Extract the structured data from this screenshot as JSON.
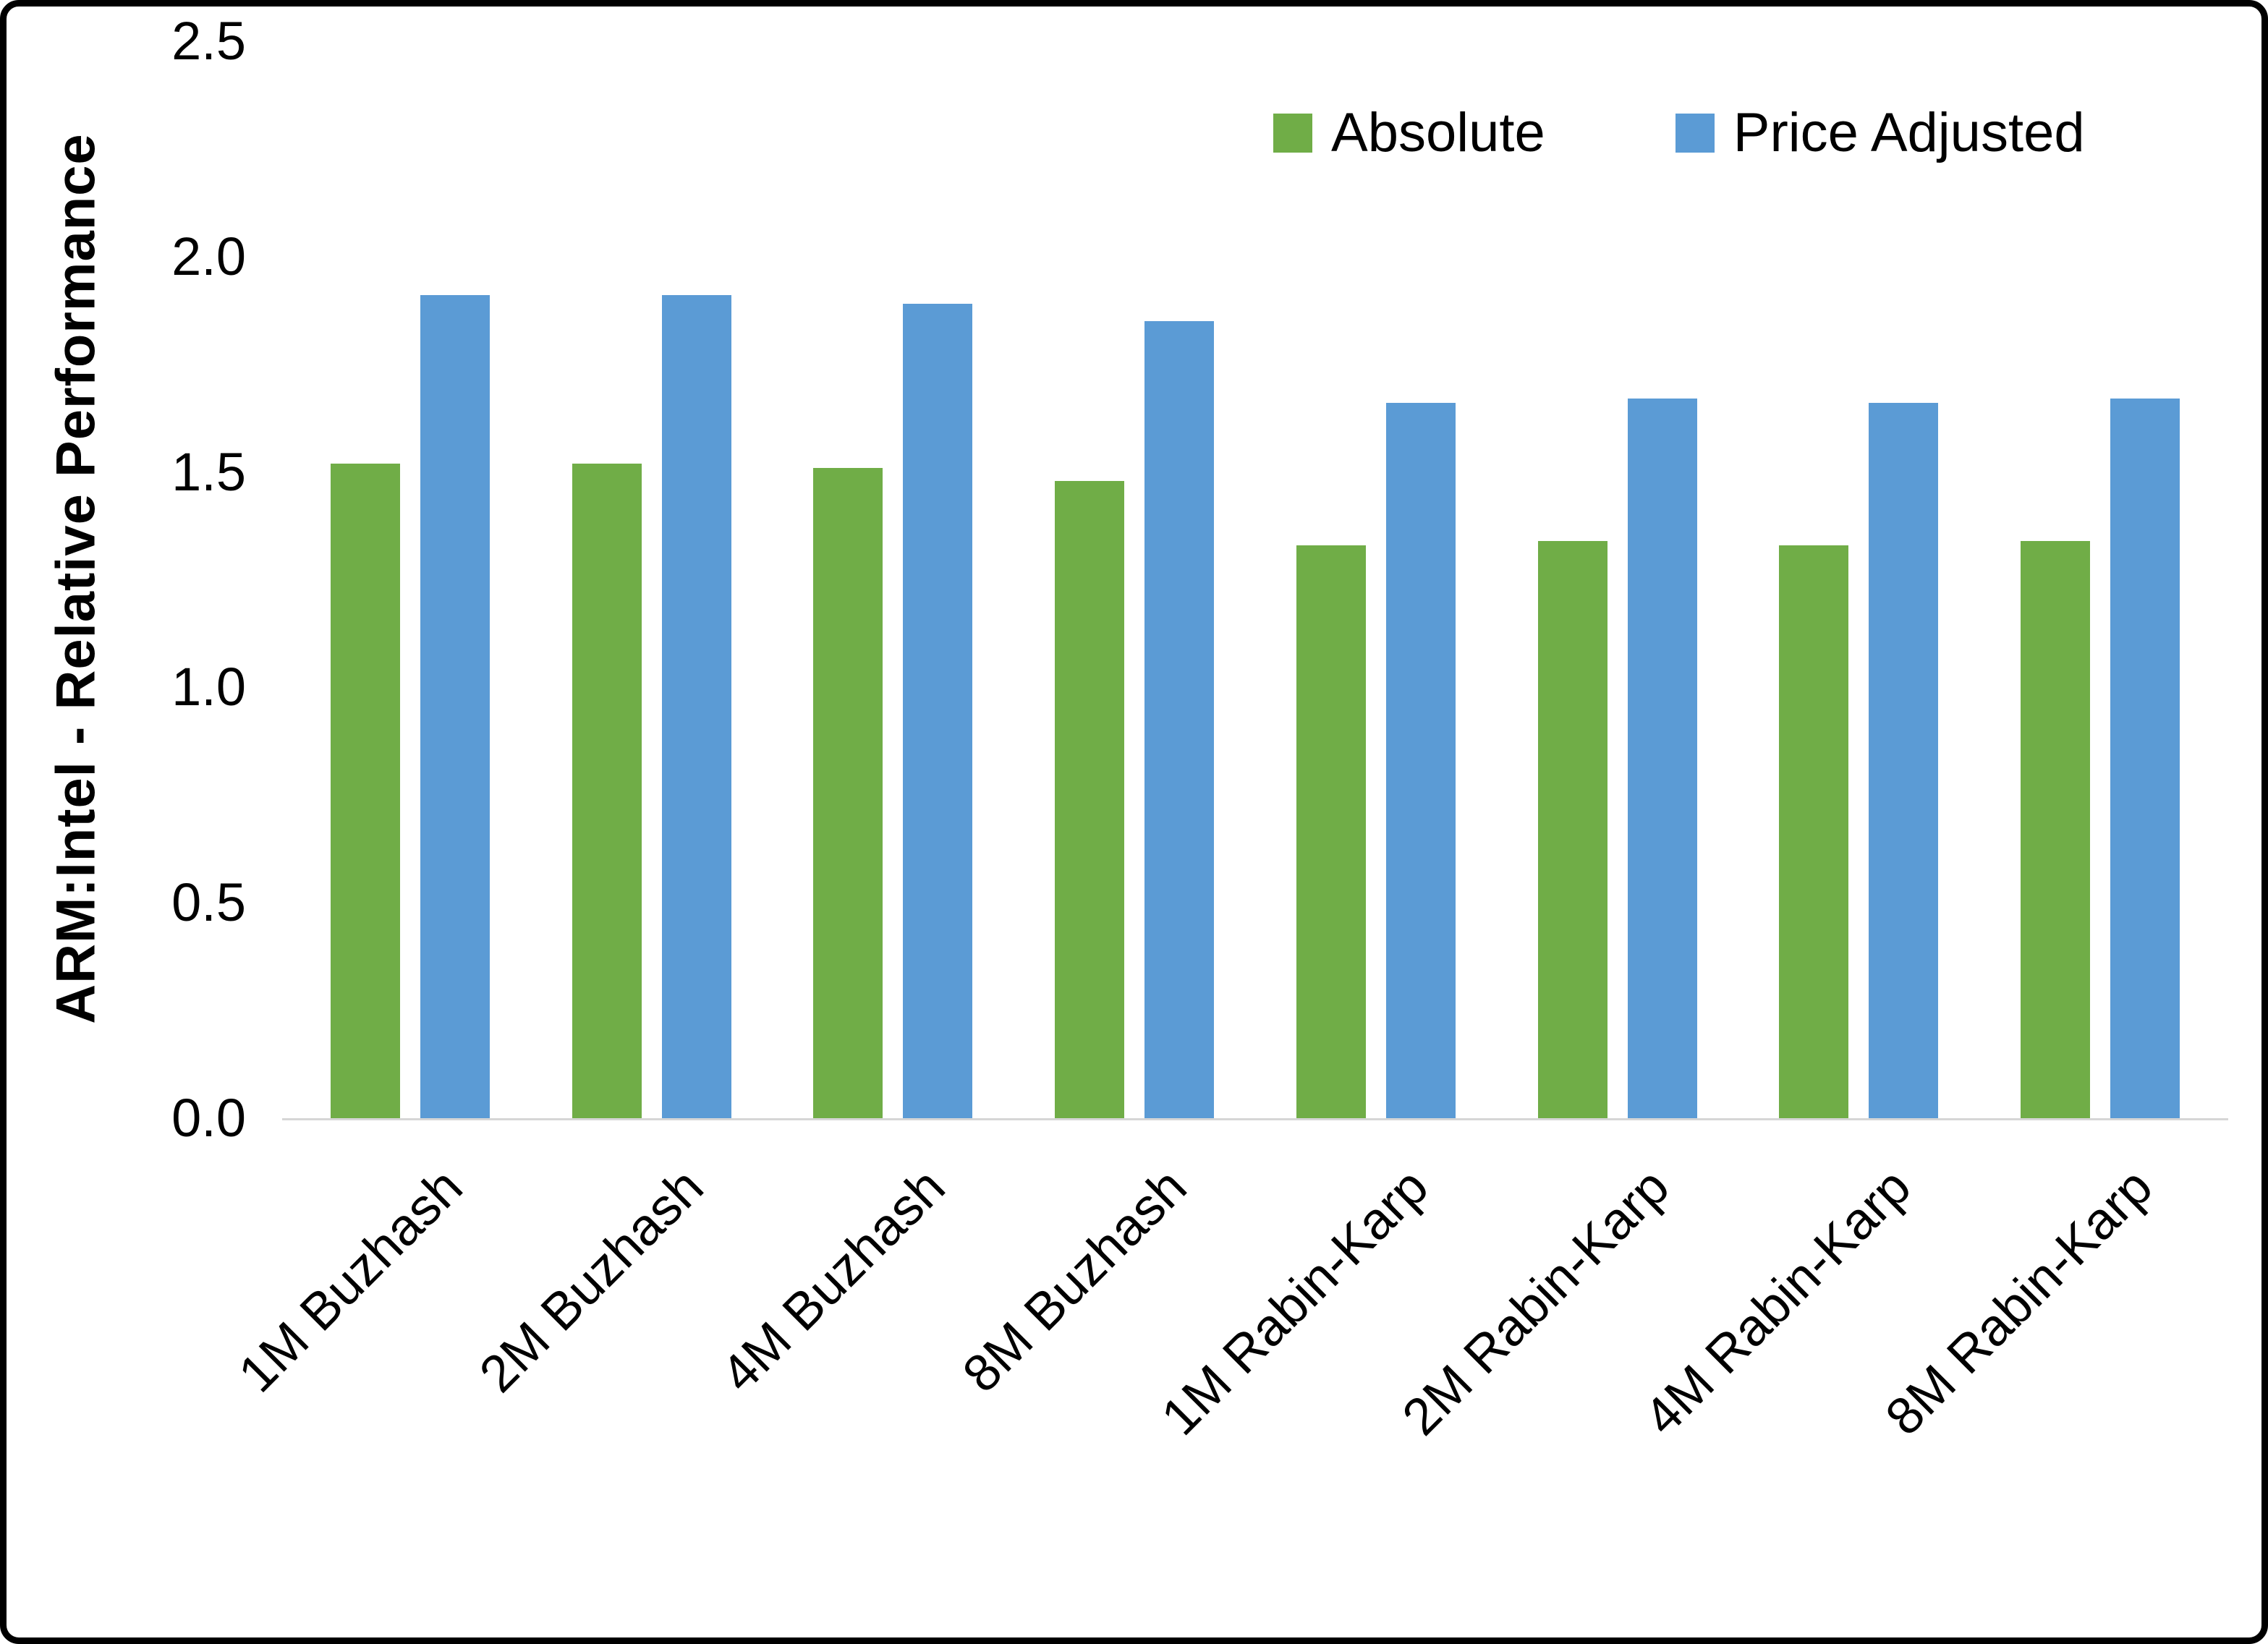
{
  "chart_data": {
    "type": "bar",
    "categories": [
      "1M Buzhash",
      "2M Buzhash",
      "4M Buzhash",
      "8M Buzhash",
      "1M Rabin-Karp",
      "2M Rabin-Karp",
      "4M Rabin-Karp",
      "8M Rabin-Karp"
    ],
    "series": [
      {
        "name": "Absolute",
        "color": "#70AD47",
        "values": [
          1.52,
          1.52,
          1.51,
          1.48,
          1.33,
          1.34,
          1.33,
          1.34
        ]
      },
      {
        "name": "Price Adjusted",
        "color": "#5B9BD5",
        "values": [
          1.91,
          1.91,
          1.89,
          1.85,
          1.66,
          1.67,
          1.66,
          1.67
        ]
      }
    ],
    "title": "",
    "xlabel": "",
    "ylabel": "ARM:Intel - Relative Performance",
    "ylim": [
      0,
      2.5
    ],
    "yticks": [
      0.0,
      0.5,
      1.0,
      1.5,
      2.0,
      2.5
    ],
    "ytick_labels": [
      "0.0",
      "0.5",
      "1.0",
      "1.5",
      "2.0",
      "2.5"
    ],
    "grid": false,
    "legend_position": "top-right",
    "background": "#ffffff",
    "border_color": "#000000"
  }
}
